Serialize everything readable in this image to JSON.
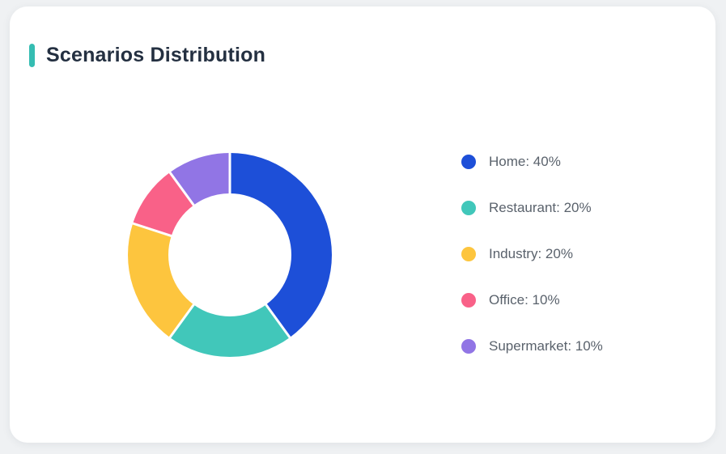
{
  "page": {
    "background_color": "#eff1f3"
  },
  "header": {
    "title": "Scenarios Distribution",
    "accent_color": "#35bdb2",
    "title_color": "#243041"
  },
  "legend": {
    "text_color": "#5a626c"
  },
  "chart_data": {
    "type": "pie",
    "subtype": "donut",
    "title": "Scenarios Distribution",
    "categories": [
      "Home",
      "Restaurant",
      "Industry",
      "Office",
      "Supermarket"
    ],
    "values": [
      40,
      20,
      20,
      10,
      10
    ],
    "unit": "%",
    "colors": [
      "#1d4fd8",
      "#41c7ba",
      "#fdc53e",
      "#f96188",
      "#9175e5"
    ],
    "legend_labels": [
      "Home: 40%",
      "Restaurant: 20%",
      "Industry: 20%",
      "Office: 10%",
      "Supermarket: 10%"
    ],
    "start_angle_deg": 0,
    "direction": "clockwise",
    "inner_radius_ratio": 0.6,
    "segment_gap_color": "#ffffff",
    "legend_position": "right"
  }
}
